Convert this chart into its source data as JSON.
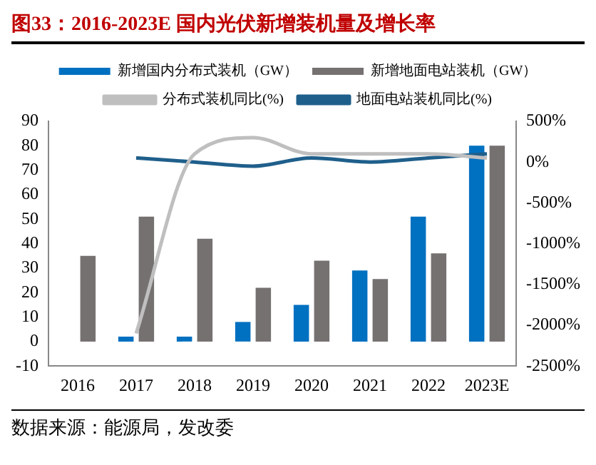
{
  "chart_data": {
    "type": "bar",
    "title": "图33：2016-2023E 国内光伏新增装机量及增长率",
    "categories": [
      "2016",
      "2017",
      "2018",
      "2019",
      "2020",
      "2021",
      "2022",
      "2023E"
    ],
    "series": [
      {
        "name": "新增国内分布式装机（GW）",
        "color": "#0070c0",
        "values": [
          0,
          2,
          2,
          8,
          15,
          29,
          51,
          80
        ]
      },
      {
        "name": "新增地面电站装机（GW）",
        "color": "#767171",
        "values": [
          35,
          51,
          42,
          22,
          33,
          25.5,
          36,
          80
        ]
      },
      {
        "name": "分布式装机同比(%)",
        "type": "line",
        "axis": "y2",
        "color": "#bfbfbf",
        "values": [
          null,
          -2100,
          100,
          300,
          100,
          100,
          100,
          50
        ]
      },
      {
        "name": "地面电站装机同比(%)",
        "type": "line",
        "axis": "y2",
        "color": "#1f5f8b",
        "values": [
          null,
          50,
          0,
          -50,
          50,
          0,
          50,
          100
        ]
      }
    ],
    "ylim": [
      -10,
      90
    ],
    "yticks": [
      -10,
      0,
      10,
      20,
      30,
      40,
      50,
      60,
      70,
      80,
      90
    ],
    "y2lim": [
      -2500,
      500
    ],
    "y2ticks": [
      {
        "value": -2500,
        "label": "-2500%"
      },
      {
        "value": -2000,
        "label": "-2000%"
      },
      {
        "value": -1500,
        "label": "-1500%"
      },
      {
        "value": -1000,
        "label": "-1000%"
      },
      {
        "value": -500,
        "label": "-500%"
      },
      {
        "value": 0,
        "label": "0%"
      },
      {
        "value": 500,
        "label": "500%"
      }
    ],
    "grid": false,
    "legend": "top",
    "annotations": [
      "数据来源：能源局，发改委"
    ]
  }
}
